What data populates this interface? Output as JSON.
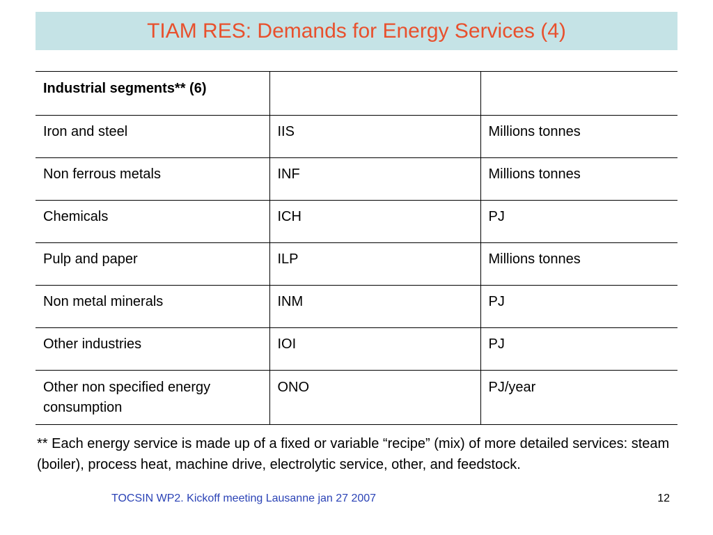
{
  "slide": {
    "title": "TIAM RES: Demands for Energy Services (4)",
    "title_color": "#e8502d",
    "title_bar_color": "#c5e3e6"
  },
  "table": {
    "header": [
      "Industrial segments** (6)",
      "",
      ""
    ],
    "rows": [
      [
        "Iron and steel",
        "IIS",
        "Millions tonnes"
      ],
      [
        "Non ferrous metals",
        "INF",
        "Millions tonnes"
      ],
      [
        "Chemicals",
        "ICH",
        "PJ"
      ],
      [
        "Pulp and paper",
        "ILP",
        "Millions tonnes"
      ],
      [
        "Non metal minerals",
        "INM",
        "PJ"
      ],
      [
        "Other industries",
        "IOI",
        "PJ"
      ],
      [
        "Other non specified energy consumption",
        "ONO",
        "PJ/year"
      ]
    ]
  },
  "footnote": "** Each energy service is made up of a fixed or variable “recipe” (mix) of more detailed services: steam (boiler), process heat, machine drive, electrolytic service, other, and feedstock.",
  "footer": {
    "text": "TOCSIN WP2. Kickoff meeting Lausanne jan 27 2007",
    "text_color": "#2b43b6",
    "page_number": "12"
  }
}
